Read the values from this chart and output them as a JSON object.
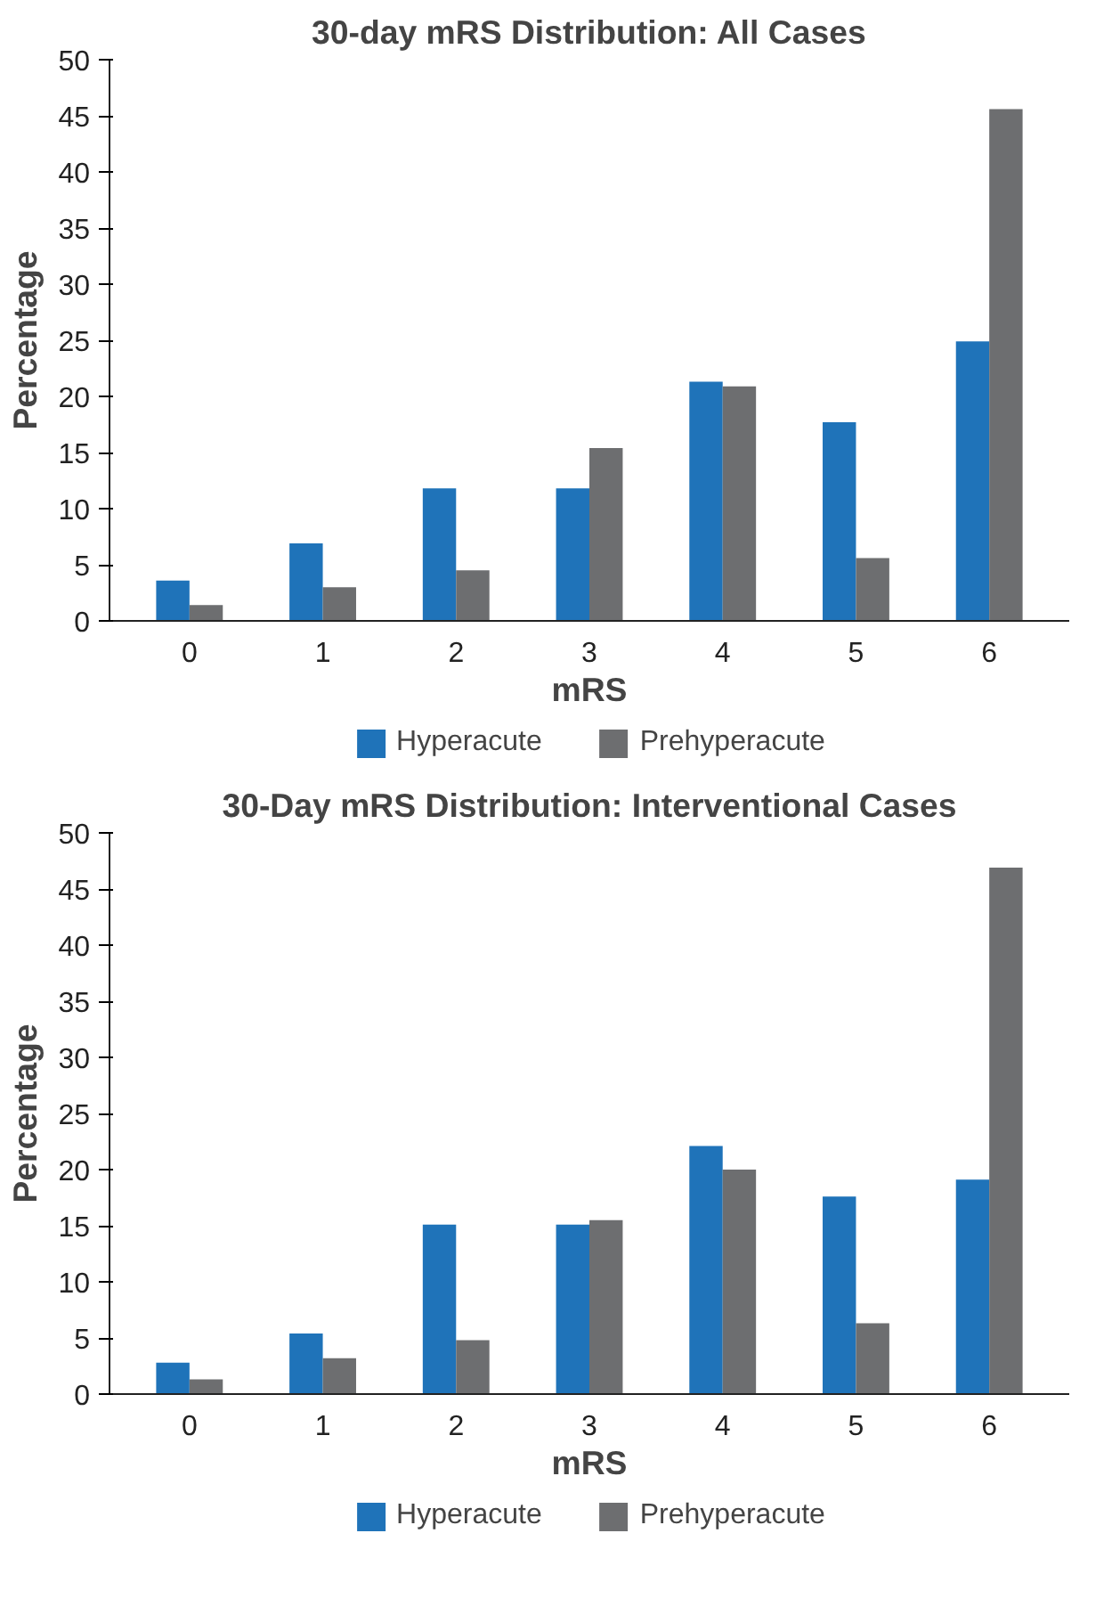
{
  "chart_data": [
    {
      "type": "bar",
      "title": "30-day mRS Distribution: All Cases",
      "xlabel": "mRS",
      "ylabel": "Percentage",
      "categories": [
        "0",
        "1",
        "2",
        "3",
        "4",
        "5",
        "6"
      ],
      "series": [
        {
          "name": "Hyperacute",
          "color": "#1f73b9",
          "values": [
            3.6,
            6.9,
            11.8,
            11.8,
            21.3,
            17.7,
            24.9
          ]
        },
        {
          "name": "Prehyperacute",
          "color": "#6d6e70",
          "values": [
            1.4,
            3.0,
            4.5,
            15.4,
            20.9,
            5.6,
            45.6
          ]
        }
      ],
      "ylim": [
        0,
        50
      ],
      "yticks": [
        0,
        5,
        10,
        15,
        20,
        25,
        30,
        35,
        40,
        45,
        50
      ],
      "grid": false,
      "legend": "bottom"
    },
    {
      "type": "bar",
      "title": "30-Day mRS Distribution: Interventional Cases",
      "xlabel": "mRS",
      "ylabel": "Percentage",
      "categories": [
        "0",
        "1",
        "2",
        "3",
        "4",
        "5",
        "6"
      ],
      "series": [
        {
          "name": "Hyperacute",
          "color": "#1f73b9",
          "values": [
            2.8,
            5.4,
            15.1,
            15.1,
            22.1,
            17.6,
            19.1
          ]
        },
        {
          "name": "Prehyperacute",
          "color": "#6d6e70",
          "values": [
            1.3,
            3.2,
            4.8,
            15.5,
            20.0,
            6.3,
            46.9
          ]
        }
      ],
      "ylim": [
        0,
        50
      ],
      "yticks": [
        0,
        5,
        10,
        15,
        20,
        25,
        30,
        35,
        40,
        45,
        50
      ],
      "grid": false,
      "legend": "bottom"
    }
  ]
}
